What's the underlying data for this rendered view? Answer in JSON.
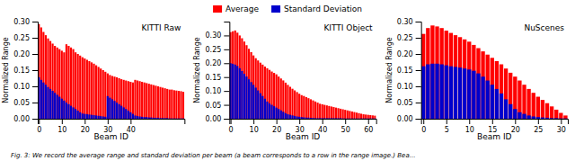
{
  "chart_data": [
    {
      "type": "bar",
      "title": "KITTI Raw",
      "xlabel": "Beam ID",
      "ylabel": "Normalized Range",
      "stacked": false,
      "x": [
        0,
        1,
        2,
        3,
        4,
        5,
        6,
        7,
        8,
        9,
        10,
        11,
        12,
        13,
        14,
        15,
        16,
        17,
        18,
        19,
        20,
        21,
        22,
        23,
        24,
        25,
        26,
        27,
        28,
        29,
        30,
        31,
        32,
        33,
        34,
        35,
        36,
        37,
        38,
        39,
        40,
        41,
        42,
        43,
        44,
        45,
        46,
        47,
        48,
        49,
        50,
        51,
        52,
        53,
        54,
        55,
        56,
        57,
        58,
        59,
        60,
        61,
        62,
        63
      ],
      "series": [
        {
          "name": "Average",
          "color": "#FF0000",
          "values": [
            0.292,
            0.282,
            0.268,
            0.258,
            0.248,
            0.24,
            0.232,
            0.225,
            0.22,
            0.215,
            0.21,
            0.205,
            0.23,
            0.225,
            0.22,
            0.215,
            0.205,
            0.2,
            0.195,
            0.19,
            0.186,
            0.182,
            0.178,
            0.174,
            0.17,
            0.165,
            0.16,
            0.155,
            0.15,
            0.145,
            0.14,
            0.135,
            0.132,
            0.13,
            0.128,
            0.125,
            0.122,
            0.12,
            0.118,
            0.116,
            0.114,
            0.112,
            0.12,
            0.118,
            0.116,
            0.114,
            0.112,
            0.11,
            0.108,
            0.106,
            0.104,
            0.102,
            0.1,
            0.098,
            0.096,
            0.094,
            0.092,
            0.09,
            0.09,
            0.088,
            0.087,
            0.086,
            0.085,
            0.083
          ]
        },
        {
          "name": "Standard Deviation",
          "color": "#0000CC",
          "values": [
            0.128,
            0.12,
            0.112,
            0.105,
            0.098,
            0.092,
            0.086,
            0.08,
            0.074,
            0.068,
            0.062,
            0.056,
            0.05,
            0.045,
            0.04,
            0.035,
            0.03,
            0.025,
            0.02,
            0.016,
            0.015,
            0.014,
            0.013,
            0.012,
            0.011,
            0.01,
            0.009,
            0.008,
            0.007,
            0.006,
            0.07,
            0.065,
            0.06,
            0.055,
            0.05,
            0.045,
            0.04,
            0.035,
            0.03,
            0.025,
            0.02,
            0.015,
            0.01,
            0.008,
            0.007,
            0.006,
            0.005,
            0.005,
            0.004,
            0.004,
            0.003,
            0.003,
            0.003,
            0.002,
            0.002,
            0.002,
            0.002,
            0.001,
            0.001,
            0.001,
            0.001,
            0.001,
            0.001,
            0.001
          ]
        }
      ],
      "xlim": [
        -0.5,
        63.5
      ],
      "xticks": [
        0,
        10,
        20,
        30,
        40
      ],
      "ylim": [
        0.0,
        0.3
      ],
      "yticks": [
        {
          "value": 0.0,
          "label": "0.00"
        },
        {
          "value": 0.05,
          "label": "0.05"
        },
        {
          "value": 0.1,
          "label": "0.10"
        },
        {
          "value": 0.15,
          "label": "0.15"
        },
        {
          "value": 0.2,
          "label": "0.20"
        },
        {
          "value": 0.25,
          "label": "0.25"
        },
        {
          "value": 0.3,
          "label": "0.30"
        }
      ],
      "grid": false
    },
    {
      "type": "bar",
      "title": "KITTI Object",
      "xlabel": "Beam ID",
      "ylabel": "Normalized Range",
      "stacked": false,
      "x": [
        0,
        1,
        2,
        3,
        4,
        5,
        6,
        7,
        8,
        9,
        10,
        11,
        12,
        13,
        14,
        15,
        16,
        17,
        18,
        19,
        20,
        21,
        22,
        23,
        24,
        25,
        26,
        27,
        28,
        29,
        30,
        31,
        32,
        33,
        34,
        35,
        36,
        37,
        38,
        39,
        40,
        41,
        42,
        43,
        44,
        45,
        46,
        47,
        48,
        49,
        50,
        51,
        52,
        53,
        54,
        55,
        56,
        57,
        58,
        59,
        60,
        61,
        62,
        63
      ],
      "series": [
        {
          "name": "Average",
          "color": "#FF0000",
          "values": [
            0.312,
            0.315,
            0.318,
            0.31,
            0.3,
            0.29,
            0.278,
            0.265,
            0.252,
            0.24,
            0.228,
            0.218,
            0.21,
            0.202,
            0.195,
            0.188,
            0.182,
            0.176,
            0.17,
            0.165,
            0.16,
            0.152,
            0.145,
            0.138,
            0.13,
            0.122,
            0.115,
            0.108,
            0.102,
            0.096,
            0.09,
            0.085,
            0.082,
            0.078,
            0.074,
            0.07,
            0.066,
            0.062,
            0.058,
            0.054,
            0.052,
            0.05,
            0.048,
            0.046,
            0.044,
            0.042,
            0.04,
            0.038,
            0.036,
            0.034,
            0.032,
            0.03,
            0.028,
            0.026,
            0.024,
            0.022,
            0.02,
            0.018,
            0.016,
            0.015,
            0.014,
            0.013,
            0.012,
            0.011
          ]
        },
        {
          "name": "Standard Deviation",
          "color": "#0000CC",
          "values": [
            0.2,
            0.198,
            0.195,
            0.19,
            0.182,
            0.172,
            0.162,
            0.152,
            0.142,
            0.132,
            0.122,
            0.112,
            0.102,
            0.092,
            0.082,
            0.072,
            0.062,
            0.055,
            0.05,
            0.045,
            0.04,
            0.035,
            0.03,
            0.025,
            0.02,
            0.016,
            0.014,
            0.012,
            0.01,
            0.008,
            0.007,
            0.006,
            0.005,
            0.004,
            0.004,
            0.003,
            0.003,
            0.002,
            0.002,
            0.002,
            0.002,
            0.002,
            0.002,
            0.002,
            0.002,
            0.002,
            0.002,
            0.002,
            0.002,
            0.001,
            0.001,
            0.001,
            0.001,
            0.001,
            0.001,
            0.001,
            0.001,
            0.001,
            0.001,
            0.001,
            0.001,
            0.001,
            0.001,
            0.001
          ]
        }
      ],
      "xlim": [
        -0.5,
        63.5
      ],
      "xticks": [
        0,
        10,
        20,
        30,
        40,
        50,
        60
      ],
      "ylim": [
        0.0,
        0.35
      ],
      "yticks": [
        {
          "value": 0.0,
          "label": "0.00"
        },
        {
          "value": 0.05,
          "label": "0.05"
        },
        {
          "value": 0.1,
          "label": "0.10"
        },
        {
          "value": 0.15,
          "label": "0.15"
        },
        {
          "value": 0.2,
          "label": "0.20"
        },
        {
          "value": 0.25,
          "label": "0.25"
        },
        {
          "value": 0.3,
          "label": "0.30"
        }
      ],
      "grid": false
    },
    {
      "type": "bar",
      "title": "NuScenes",
      "xlabel": "Beam ID",
      "ylabel": "Normalized Range",
      "stacked": false,
      "x": [
        0,
        1,
        2,
        3,
        4,
        5,
        6,
        7,
        8,
        9,
        10,
        11,
        12,
        13,
        14,
        15,
        16,
        17,
        18,
        19,
        20,
        21,
        22,
        23,
        24,
        25,
        26,
        27,
        28,
        29,
        30,
        31
      ],
      "series": [
        {
          "name": "Average",
          "color": "#FF0000",
          "values": [
            0.262,
            0.28,
            0.288,
            0.285,
            0.28,
            0.272,
            0.265,
            0.258,
            0.252,
            0.245,
            0.238,
            0.228,
            0.218,
            0.208,
            0.198,
            0.188,
            0.178,
            0.168,
            0.155,
            0.142,
            0.13,
            0.118,
            0.105,
            0.092,
            0.08,
            0.068,
            0.058,
            0.048,
            0.038,
            0.028,
            0.018,
            0.01
          ]
        },
        {
          "name": "Standard Deviation",
          "color": "#0000CC",
          "values": [
            0.162,
            0.168,
            0.17,
            0.17,
            0.168,
            0.165,
            0.162,
            0.16,
            0.158,
            0.155,
            0.152,
            0.148,
            0.14,
            0.13,
            0.118,
            0.105,
            0.092,
            0.078,
            0.06,
            0.045,
            0.03,
            0.02,
            0.015,
            0.01,
            0.007,
            0.005,
            0.004,
            0.003,
            0.002,
            0.002,
            0.001,
            0.001
          ]
        }
      ],
      "xlim": [
        -0.5,
        31.5
      ],
      "xticks": [
        0,
        5,
        10,
        15,
        20,
        25,
        30
      ],
      "ylim": [
        0.0,
        0.3
      ],
      "yticks": [
        {
          "value": 0.0,
          "label": "0.00"
        },
        {
          "value": 0.05,
          "label": "0.05"
        },
        {
          "value": 0.1,
          "label": "0.10"
        },
        {
          "value": 0.15,
          "label": "0.15"
        },
        {
          "value": 0.2,
          "label": "0.20"
        },
        {
          "value": 0.25,
          "label": "0.25"
        },
        {
          "value": 0.3,
          "label": "0.30"
        }
      ],
      "grid": false
    }
  ],
  "caption": "Fig. 3: We record the average range and standard deviation per beam (a beam corresponds to a row in the range image.) Bea..."
}
